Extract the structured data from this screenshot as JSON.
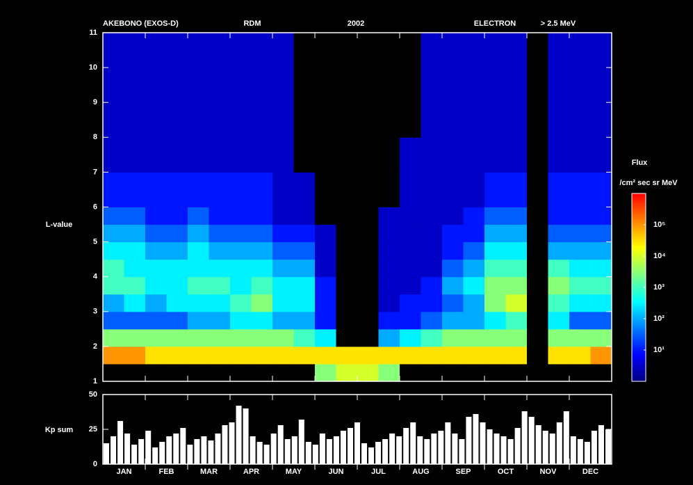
{
  "chart_data": [
    {
      "type": "heatmap",
      "title": "AKEBONO (EXOS-D)",
      "annotations": [
        "RDM",
        "2002",
        "ELECTRON",
        "> 2.5 MeV"
      ],
      "ylabel": "L-value",
      "ylim": [
        1,
        11
      ],
      "yticks": [
        1,
        2,
        3,
        4,
        5,
        6,
        7,
        8,
        9,
        10,
        11
      ],
      "y_edges": [
        1,
        1.5,
        2,
        2.5,
        3,
        3.5,
        4,
        4.5,
        5,
        5.5,
        6,
        7,
        8,
        11
      ],
      "zlim": [
        1,
        1000000
      ],
      "zlog": true,
      "zticks": [
        {
          "value": 10,
          "label": "10¹"
        },
        {
          "value": 100,
          "label": "10²"
        },
        {
          "value": 1000,
          "label": "10³"
        },
        {
          "value": 10000,
          "label": "10⁴"
        },
        {
          "value": 100000,
          "label": "10⁵"
        }
      ],
      "colorbar_title": "Flux",
      "colorbar_units": "/cm² sec sr MeV",
      "colormap": [
        "#00007f",
        "#0000ff",
        "#0080ff",
        "#00ffff",
        "#80ff80",
        "#ffff00",
        "#ff8000",
        "#ff0000"
      ],
      "null_color": "#000000",
      "values": [
        [
          null,
          null,
          null,
          null,
          null,
          null,
          null,
          null,
          null,
          null,
          3000,
          10000,
          10000,
          3000,
          null,
          null,
          null,
          null,
          null,
          null,
          null,
          null,
          null,
          null
        ],
        [
          100000,
          100000,
          30000,
          30000,
          30000,
          30000,
          30000,
          30000,
          30000,
          30000,
          30000,
          30000,
          30000,
          30000,
          30000,
          30000,
          30000,
          30000,
          30000,
          30000,
          null,
          30000,
          30000,
          100000
        ],
        [
          3000,
          3000,
          3000,
          3000,
          3000,
          3000,
          3000,
          3000,
          3000,
          1000,
          300,
          null,
          null,
          100,
          300,
          1000,
          3000,
          3000,
          3000,
          3000,
          null,
          3000,
          3000,
          3000
        ],
        [
          30,
          30,
          30,
          30,
          100,
          100,
          300,
          300,
          100,
          100,
          10,
          null,
          null,
          10,
          10,
          30,
          100,
          100,
          300,
          1000,
          null,
          300,
          30,
          30
        ],
        [
          100,
          300,
          100,
          300,
          300,
          300,
          1000,
          3000,
          300,
          300,
          10,
          null,
          null,
          3,
          10,
          10,
          30,
          100,
          3000,
          10000,
          null,
          1000,
          300,
          300
        ],
        [
          1000,
          1000,
          300,
          300,
          1000,
          1000,
          300,
          1000,
          300,
          300,
          10,
          null,
          null,
          3,
          3,
          10,
          100,
          300,
          3000,
          3000,
          null,
          3000,
          1000,
          1000
        ],
        [
          1000,
          300,
          300,
          300,
          300,
          300,
          300,
          300,
          100,
          100,
          3,
          null,
          null,
          3,
          3,
          3,
          30,
          100,
          1000,
          1000,
          null,
          1000,
          300,
          300
        ],
        [
          300,
          300,
          100,
          100,
          300,
          100,
          100,
          100,
          30,
          30,
          3,
          null,
          null,
          3,
          3,
          3,
          10,
          30,
          300,
          300,
          null,
          100,
          100,
          100
        ],
        [
          100,
          100,
          30,
          30,
          100,
          30,
          30,
          30,
          10,
          10,
          3,
          null,
          null,
          3,
          3,
          3,
          10,
          10,
          100,
          100,
          null,
          30,
          30,
          30
        ],
        [
          30,
          30,
          10,
          10,
          30,
          10,
          10,
          10,
          3,
          3,
          null,
          null,
          null,
          3,
          3,
          3,
          3,
          10,
          30,
          30,
          null,
          10,
          10,
          10
        ],
        [
          10,
          10,
          10,
          10,
          10,
          10,
          10,
          10,
          3,
          3,
          null,
          null,
          null,
          null,
          3,
          3,
          3,
          3,
          10,
          10,
          null,
          10,
          10,
          10
        ],
        [
          3,
          3,
          3,
          3,
          3,
          3,
          3,
          3,
          3,
          null,
          null,
          null,
          null,
          null,
          3,
          3,
          3,
          3,
          3,
          3,
          null,
          3,
          3,
          3
        ],
        [
          3,
          3,
          3,
          3,
          3,
          3,
          3,
          3,
          3,
          null,
          null,
          null,
          null,
          null,
          null,
          3,
          3,
          3,
          3,
          3,
          null,
          3,
          3,
          3
        ]
      ]
    },
    {
      "type": "bar",
      "ylabel": "Kp sum",
      "color": "#ffffff",
      "ylim": [
        0,
        50
      ],
      "yticks": [
        0,
        25,
        50
      ],
      "months": [
        "JAN",
        "FEB",
        "MAR",
        "APR",
        "MAY",
        "JUN",
        "JUL",
        "AUG",
        "SEP",
        "OCT",
        "NOV",
        "DEC"
      ],
      "values": [
        15,
        20,
        31,
        22,
        14,
        18,
        24,
        12,
        16,
        20,
        22,
        26,
        14,
        18,
        20,
        17,
        22,
        28,
        30,
        42,
        40,
        20,
        16,
        14,
        22,
        28,
        18,
        20,
        32,
        16,
        14,
        22,
        18,
        20,
        24,
        26,
        30,
        15,
        12,
        16,
        18,
        22,
        20,
        26,
        30,
        20,
        18,
        22,
        24,
        30,
        22,
        18,
        34,
        36,
        30,
        25,
        22,
        20,
        18,
        26,
        38,
        34,
        28,
        24,
        22,
        30,
        38,
        20,
        18,
        16,
        24,
        28,
        25
      ]
    }
  ]
}
